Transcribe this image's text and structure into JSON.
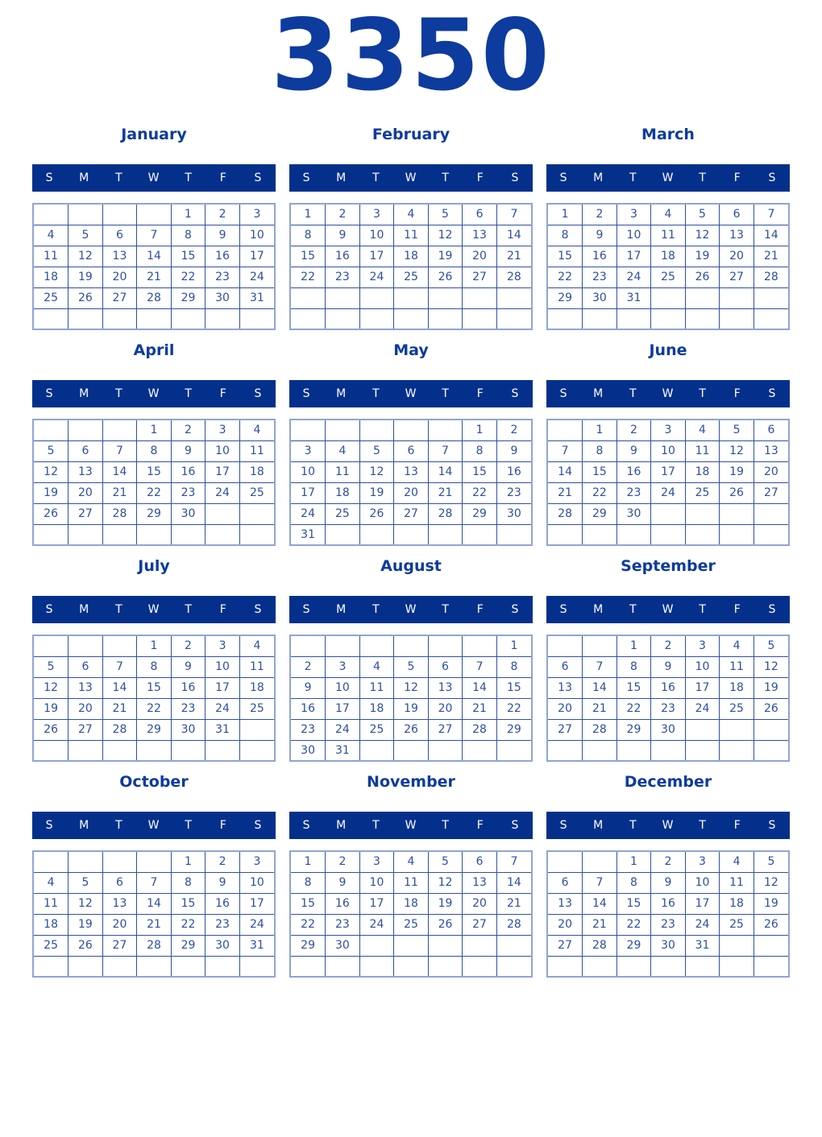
{
  "year": "3350",
  "weekday_letters": [
    "S",
    "M",
    "T",
    "W",
    "T",
    "F",
    "S"
  ],
  "colors": {
    "header_bg": "#04308c",
    "title_color": "#0d3b9e",
    "day_color": "#2d4fa2",
    "inner_border": "#3050a6",
    "outer_border": "#90a4d4"
  },
  "months": [
    {
      "name": "January",
      "weeks": [
        [
          "",
          "",
          "",
          "",
          "1",
          "2",
          "3"
        ],
        [
          "4",
          "5",
          "6",
          "7",
          "8",
          "9",
          "10"
        ],
        [
          "11",
          "12",
          "13",
          "14",
          "15",
          "16",
          "17"
        ],
        [
          "18",
          "19",
          "20",
          "21",
          "22",
          "23",
          "24"
        ],
        [
          "25",
          "26",
          "27",
          "28",
          "29",
          "30",
          "31"
        ],
        [
          "",
          "",
          "",
          "",
          "",
          "",
          ""
        ]
      ]
    },
    {
      "name": "February",
      "weeks": [
        [
          "1",
          "2",
          "3",
          "4",
          "5",
          "6",
          "7"
        ],
        [
          "8",
          "9",
          "10",
          "11",
          "12",
          "13",
          "14"
        ],
        [
          "15",
          "16",
          "17",
          "18",
          "19",
          "20",
          "21"
        ],
        [
          "22",
          "23",
          "24",
          "25",
          "26",
          "27",
          "28"
        ],
        [
          "",
          "",
          "",
          "",
          "",
          "",
          ""
        ],
        [
          "",
          "",
          "",
          "",
          "",
          "",
          ""
        ]
      ]
    },
    {
      "name": "March",
      "weeks": [
        [
          "1",
          "2",
          "3",
          "4",
          "5",
          "6",
          "7"
        ],
        [
          "8",
          "9",
          "10",
          "11",
          "12",
          "13",
          "14"
        ],
        [
          "15",
          "16",
          "17",
          "18",
          "19",
          "20",
          "21"
        ],
        [
          "22",
          "23",
          "24",
          "25",
          "26",
          "27",
          "28"
        ],
        [
          "29",
          "30",
          "31",
          "",
          "",
          "",
          ""
        ],
        [
          "",
          "",
          "",
          "",
          "",
          "",
          ""
        ]
      ]
    },
    {
      "name": "April",
      "weeks": [
        [
          "",
          "",
          "",
          "1",
          "2",
          "3",
          "4"
        ],
        [
          "5",
          "6",
          "7",
          "8",
          "9",
          "10",
          "11"
        ],
        [
          "12",
          "13",
          "14",
          "15",
          "16",
          "17",
          "18"
        ],
        [
          "19",
          "20",
          "21",
          "22",
          "23",
          "24",
          "25"
        ],
        [
          "26",
          "27",
          "28",
          "29",
          "30",
          "",
          ""
        ],
        [
          "",
          "",
          "",
          "",
          "",
          "",
          ""
        ]
      ]
    },
    {
      "name": "May",
      "weeks": [
        [
          "",
          "",
          "",
          "",
          "",
          "1",
          "2"
        ],
        [
          "3",
          "4",
          "5",
          "6",
          "7",
          "8",
          "9"
        ],
        [
          "10",
          "11",
          "12",
          "13",
          "14",
          "15",
          "16"
        ],
        [
          "17",
          "18",
          "19",
          "20",
          "21",
          "22",
          "23"
        ],
        [
          "24",
          "25",
          "26",
          "27",
          "28",
          "29",
          "30"
        ],
        [
          "31",
          "",
          "",
          "",
          "",
          "",
          ""
        ]
      ]
    },
    {
      "name": "June",
      "weeks": [
        [
          "",
          "1",
          "2",
          "3",
          "4",
          "5",
          "6"
        ],
        [
          "7",
          "8",
          "9",
          "10",
          "11",
          "12",
          "13"
        ],
        [
          "14",
          "15",
          "16",
          "17",
          "18",
          "19",
          "20"
        ],
        [
          "21",
          "22",
          "23",
          "24",
          "25",
          "26",
          "27"
        ],
        [
          "28",
          "29",
          "30",
          "",
          "",
          "",
          ""
        ],
        [
          "",
          "",
          "",
          "",
          "",
          "",
          ""
        ]
      ]
    },
    {
      "name": "July",
      "weeks": [
        [
          "",
          "",
          "",
          "1",
          "2",
          "3",
          "4"
        ],
        [
          "5",
          "6",
          "7",
          "8",
          "9",
          "10",
          "11"
        ],
        [
          "12",
          "13",
          "14",
          "15",
          "16",
          "17",
          "18"
        ],
        [
          "19",
          "20",
          "21",
          "22",
          "23",
          "24",
          "25"
        ],
        [
          "26",
          "27",
          "28",
          "29",
          "30",
          "31",
          ""
        ],
        [
          "",
          "",
          "",
          "",
          "",
          "",
          ""
        ]
      ]
    },
    {
      "name": "August",
      "weeks": [
        [
          "",
          "",
          "",
          "",
          "",
          "",
          "1"
        ],
        [
          "2",
          "3",
          "4",
          "5",
          "6",
          "7",
          "8"
        ],
        [
          "9",
          "10",
          "11",
          "12",
          "13",
          "14",
          "15"
        ],
        [
          "16",
          "17",
          "18",
          "19",
          "20",
          "21",
          "22"
        ],
        [
          "23",
          "24",
          "25",
          "26",
          "27",
          "28",
          "29"
        ],
        [
          "30",
          "31",
          "",
          "",
          "",
          "",
          ""
        ]
      ]
    },
    {
      "name": "September",
      "weeks": [
        [
          "",
          "",
          "1",
          "2",
          "3",
          "4",
          "5"
        ],
        [
          "6",
          "7",
          "8",
          "9",
          "10",
          "11",
          "12"
        ],
        [
          "13",
          "14",
          "15",
          "16",
          "17",
          "18",
          "19"
        ],
        [
          "20",
          "21",
          "22",
          "23",
          "24",
          "25",
          "26"
        ],
        [
          "27",
          "28",
          "29",
          "30",
          "",
          "",
          ""
        ],
        [
          "",
          "",
          "",
          "",
          "",
          "",
          ""
        ]
      ]
    },
    {
      "name": "October",
      "weeks": [
        [
          "",
          "",
          "",
          "",
          "1",
          "2",
          "3"
        ],
        [
          "4",
          "5",
          "6",
          "7",
          "8",
          "9",
          "10"
        ],
        [
          "11",
          "12",
          "13",
          "14",
          "15",
          "16",
          "17"
        ],
        [
          "18",
          "19",
          "20",
          "21",
          "22",
          "23",
          "24"
        ],
        [
          "25",
          "26",
          "27",
          "28",
          "29",
          "30",
          "31"
        ],
        [
          "",
          "",
          "",
          "",
          "",
          "",
          ""
        ]
      ]
    },
    {
      "name": "November",
      "weeks": [
        [
          "1",
          "2",
          "3",
          "4",
          "5",
          "6",
          "7"
        ],
        [
          "8",
          "9",
          "10",
          "11",
          "12",
          "13",
          "14"
        ],
        [
          "15",
          "16",
          "17",
          "18",
          "19",
          "20",
          "21"
        ],
        [
          "22",
          "23",
          "24",
          "25",
          "26",
          "27",
          "28"
        ],
        [
          "29",
          "30",
          "",
          "",
          "",
          "",
          ""
        ],
        [
          "",
          "",
          "",
          "",
          "",
          "",
          ""
        ]
      ]
    },
    {
      "name": "December",
      "weeks": [
        [
          "",
          "",
          "1",
          "2",
          "3",
          "4",
          "5"
        ],
        [
          "6",
          "7",
          "8",
          "9",
          "10",
          "11",
          "12"
        ],
        [
          "13",
          "14",
          "15",
          "16",
          "17",
          "18",
          "19"
        ],
        [
          "20",
          "21",
          "22",
          "23",
          "24",
          "25",
          "26"
        ],
        [
          "27",
          "28",
          "29",
          "30",
          "31",
          "",
          ""
        ],
        [
          "",
          "",
          "",
          "",
          "",
          "",
          ""
        ]
      ]
    }
  ]
}
